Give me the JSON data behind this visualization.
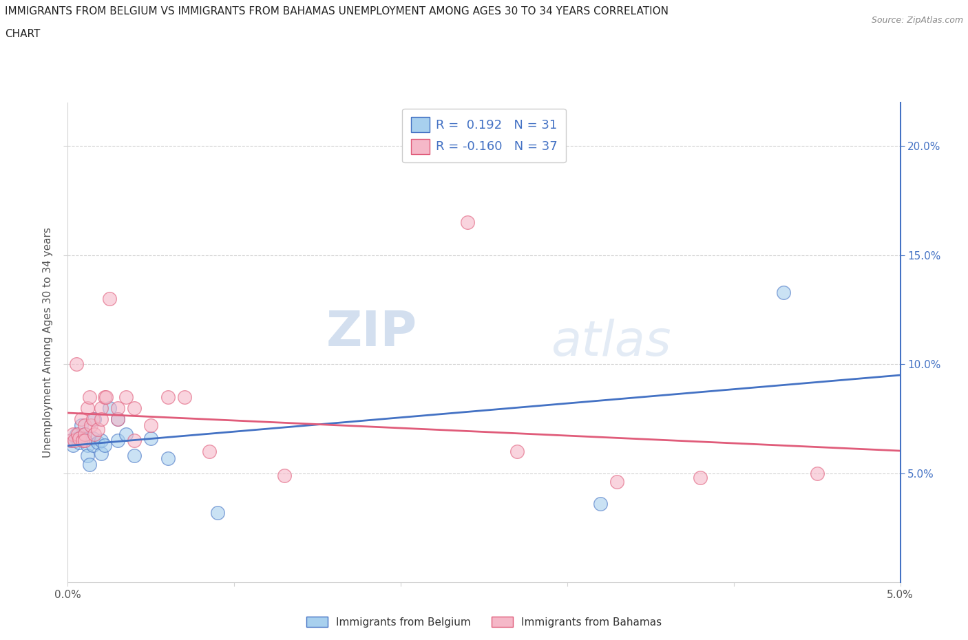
{
  "title_line1": "IMMIGRANTS FROM BELGIUM VS IMMIGRANTS FROM BAHAMAS UNEMPLOYMENT AMONG AGES 30 TO 34 YEARS CORRELATION",
  "title_line2": "CHART",
  "source_text": "Source: ZipAtlas.com",
  "ylabel": "Unemployment Among Ages 30 to 34 years",
  "xlabel_belgium": "Immigrants from Belgium",
  "xlabel_bahamas": "Immigrants from Bahamas",
  "xlim": [
    0.0,
    0.05
  ],
  "ylim": [
    0.0,
    0.22
  ],
  "xticks": [
    0.0,
    0.01,
    0.02,
    0.03,
    0.04,
    0.05
  ],
  "yticks": [
    0.05,
    0.1,
    0.15,
    0.2
  ],
  "r_belgium": 0.192,
  "n_belgium": 31,
  "r_bahamas": -0.16,
  "n_bahamas": 37,
  "color_belgium": "#A8D0EE",
  "color_bahamas": "#F5B8C8",
  "line_color_belgium": "#4472C4",
  "line_color_bahamas": "#E05C7A",
  "watermark_zip": "ZIP",
  "watermark_atlas": "atlas",
  "belgium_scatter_x": [
    0.0002,
    0.0003,
    0.0005,
    0.0005,
    0.0006,
    0.0007,
    0.0008,
    0.0009,
    0.001,
    0.001,
    0.001,
    0.0012,
    0.0012,
    0.0013,
    0.0015,
    0.0015,
    0.0016,
    0.0018,
    0.002,
    0.002,
    0.0022,
    0.0025,
    0.003,
    0.003,
    0.0035,
    0.004,
    0.005,
    0.006,
    0.009,
    0.032,
    0.043
  ],
  "belgium_scatter_y": [
    0.065,
    0.063,
    0.066,
    0.068,
    0.066,
    0.064,
    0.072,
    0.066,
    0.066,
    0.068,
    0.065,
    0.063,
    0.058,
    0.054,
    0.066,
    0.063,
    0.075,
    0.064,
    0.065,
    0.059,
    0.063,
    0.08,
    0.075,
    0.065,
    0.068,
    0.058,
    0.066,
    0.057,
    0.032,
    0.036,
    0.133
  ],
  "bahamas_scatter_x": [
    0.0002,
    0.0003,
    0.0004,
    0.0005,
    0.0006,
    0.0007,
    0.0008,
    0.0009,
    0.001,
    0.001,
    0.001,
    0.0012,
    0.0013,
    0.0014,
    0.0015,
    0.0016,
    0.0018,
    0.002,
    0.002,
    0.0022,
    0.0023,
    0.0025,
    0.003,
    0.003,
    0.0035,
    0.004,
    0.004,
    0.005,
    0.006,
    0.007,
    0.0085,
    0.013,
    0.024,
    0.027,
    0.033,
    0.038,
    0.045
  ],
  "bahamas_scatter_y": [
    0.065,
    0.068,
    0.065,
    0.1,
    0.068,
    0.066,
    0.075,
    0.065,
    0.072,
    0.068,
    0.065,
    0.08,
    0.085,
    0.072,
    0.075,
    0.068,
    0.07,
    0.08,
    0.075,
    0.085,
    0.085,
    0.13,
    0.075,
    0.08,
    0.085,
    0.08,
    0.065,
    0.072,
    0.085,
    0.085,
    0.06,
    0.049,
    0.165,
    0.06,
    0.046,
    0.048,
    0.05
  ],
  "title_fontsize": 11,
  "label_fontsize": 11,
  "tick_fontsize": 11,
  "legend_fontsize": 13
}
